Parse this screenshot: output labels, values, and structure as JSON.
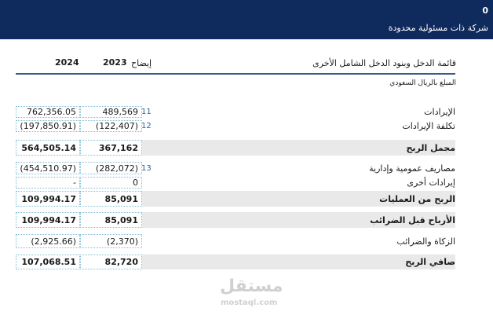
{
  "header": {
    "code": "0",
    "company": "شركة ذات مسئولية محدودة"
  },
  "statement": {
    "title": "قائمة الدخل وبنود الدخل الشامل الأخرى",
    "currency_note": "المبلغ بالريال السعودي",
    "year_2024": "2024",
    "year_2023": "2023",
    "note_header": "إيضاح"
  },
  "rows": [
    {
      "label": "الإيرادات",
      "note": "11",
      "v2024": "762,356.05",
      "v2023": "489,569"
    },
    {
      "label": "تكلفة الإيرادات",
      "note": "12",
      "v2024": "(197,850.91)",
      "v2023": "(122,407)"
    },
    {
      "label": "مجمل الربح",
      "note": "",
      "v2024": "564,505.14",
      "v2023": "367,162"
    },
    {
      "label": "مصاريف عمومية وإدارية",
      "note": "13",
      "v2024": "(454,510.97)",
      "v2023": "(282,072)"
    },
    {
      "label": "إيرادات أخرى",
      "note": "",
      "v2024": "-",
      "v2023": "0"
    },
    {
      "label": "الربح من العمليات",
      "note": "",
      "v2024": "109,994.17",
      "v2023": "85,091"
    },
    {
      "label": "الأرباح قبل الضرائب",
      "note": "",
      "v2024": "109,994.17",
      "v2023": "85,091"
    },
    {
      "label": "الزكاة والضرائب",
      "note": "",
      "v2024": "(2,925.66)",
      "v2023": "(2,370)"
    },
    {
      "label": "صافي الربح",
      "note": "",
      "v2024": "107,068.51",
      "v2023": "82,720"
    }
  ],
  "watermark": {
    "logo": "مستقل",
    "site": "mostaql.com"
  }
}
